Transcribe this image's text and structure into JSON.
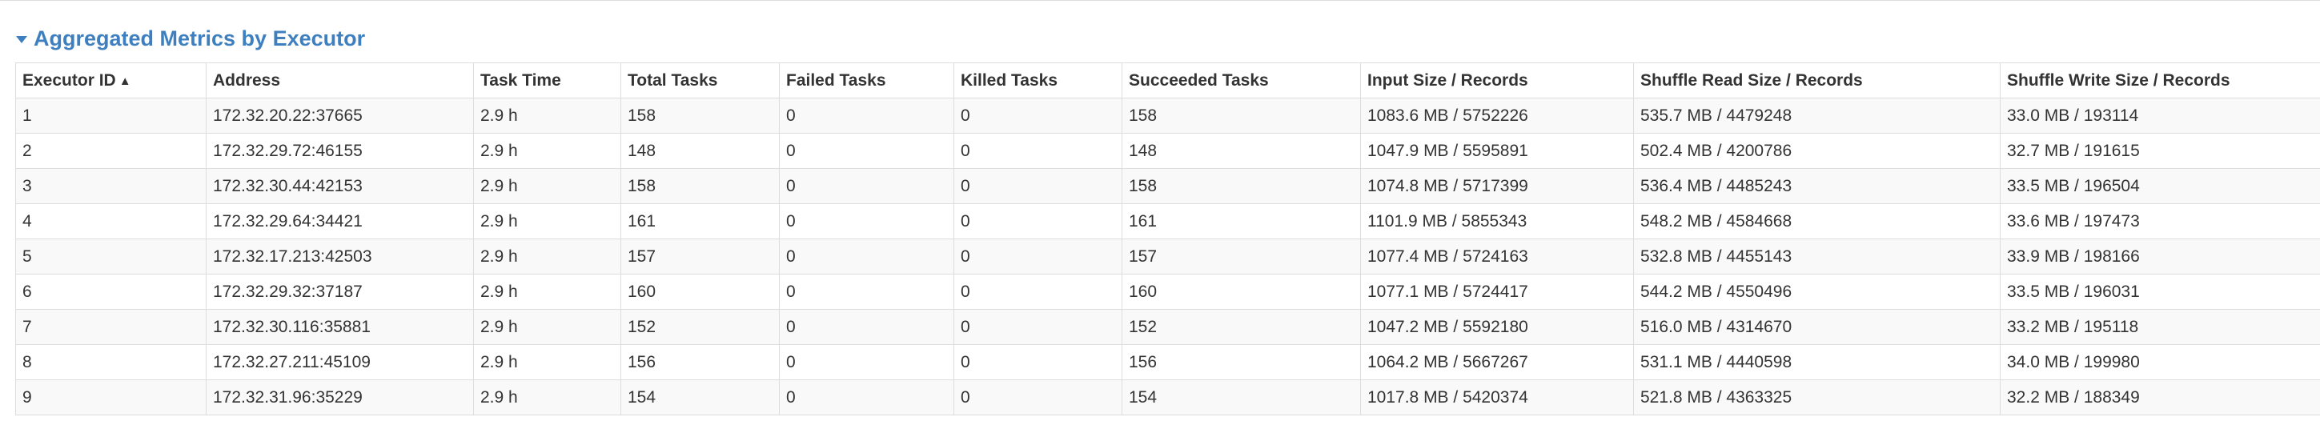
{
  "section": {
    "title": "Aggregated Metrics by Executor",
    "toggle_icon": "caret-down-icon"
  },
  "table": {
    "sort_indicator": "▲",
    "columns": [
      "Executor ID",
      "Address",
      "Task Time",
      "Total Tasks",
      "Failed Tasks",
      "Killed Tasks",
      "Succeeded Tasks",
      "Input Size / Records",
      "Shuffle Read Size / Records",
      "Shuffle Write Size / Records"
    ],
    "rows": [
      [
        "1",
        "172.32.20.22:37665",
        "2.9 h",
        "158",
        "0",
        "0",
        "158",
        "1083.6 MB / 5752226",
        "535.7 MB / 4479248",
        "33.0 MB / 193114"
      ],
      [
        "2",
        "172.32.29.72:46155",
        "2.9 h",
        "148",
        "0",
        "0",
        "148",
        "1047.9 MB / 5595891",
        "502.4 MB / 4200786",
        "32.7 MB / 191615"
      ],
      [
        "3",
        "172.32.30.44:42153",
        "2.9 h",
        "158",
        "0",
        "0",
        "158",
        "1074.8 MB / 5717399",
        "536.4 MB / 4485243",
        "33.5 MB / 196504"
      ],
      [
        "4",
        "172.32.29.64:34421",
        "2.9 h",
        "161",
        "0",
        "0",
        "161",
        "1101.9 MB / 5855343",
        "548.2 MB / 4584668",
        "33.6 MB / 197473"
      ],
      [
        "5",
        "172.32.17.213:42503",
        "2.9 h",
        "157",
        "0",
        "0",
        "157",
        "1077.4 MB / 5724163",
        "532.8 MB / 4455143",
        "33.9 MB / 198166"
      ],
      [
        "6",
        "172.32.29.32:37187",
        "2.9 h",
        "160",
        "0",
        "0",
        "160",
        "1077.1 MB / 5724417",
        "544.2 MB / 4550496",
        "33.5 MB / 196031"
      ],
      [
        "7",
        "172.32.30.116:35881",
        "2.9 h",
        "152",
        "0",
        "0",
        "152",
        "1047.2 MB / 5592180",
        "516.0 MB / 4314670",
        "33.2 MB / 195118"
      ],
      [
        "8",
        "172.32.27.211:45109",
        "2.9 h",
        "156",
        "0",
        "0",
        "156",
        "1064.2 MB / 5667267",
        "531.1 MB / 4440598",
        "34.0 MB / 199980"
      ],
      [
        "9",
        "172.32.31.96:35229",
        "2.9 h",
        "154",
        "0",
        "0",
        "154",
        "1017.8 MB / 5420374",
        "521.8 MB / 4363325",
        "32.2 MB / 188349"
      ]
    ]
  }
}
